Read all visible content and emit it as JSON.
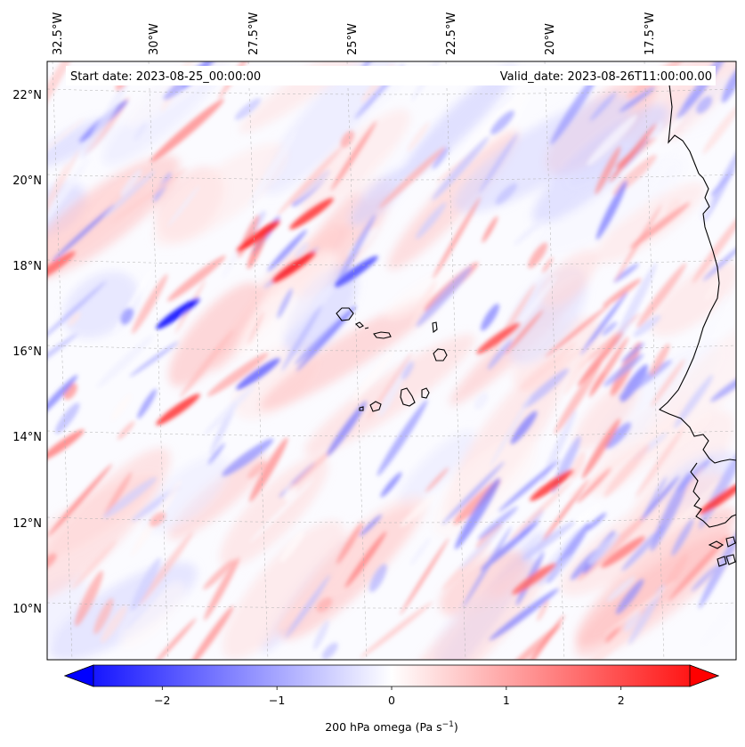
{
  "map": {
    "start_label": "Start date: 2023-08-25_00:00:00",
    "valid_label": "Valid_date: 2023-08-26T11:00:00.00",
    "lon_labels": [
      "32.5°W",
      "30°W",
      "27.5°W",
      "25°W",
      "22.5°W",
      "20°W",
      "17.5°W"
    ],
    "lat_labels": [
      "22°N",
      "20°N",
      "18°N",
      "16°N",
      "14°N",
      "12°N",
      "10°N"
    ],
    "field": "200 hPa omega",
    "colormap": "bwr",
    "value_range": [
      -2.6,
      2.6
    ],
    "coastline_color": "#000000"
  },
  "colorbar": {
    "label_main": "200 hPa omega (Pa s",
    "label_sup": "−1",
    "label_end": ")",
    "ticks": [
      {
        "value": -2,
        "label": "−2"
      },
      {
        "value": -1,
        "label": "−1"
      },
      {
        "value": 0,
        "label": "0"
      },
      {
        "value": 1,
        "label": "1"
      },
      {
        "value": 2,
        "label": "2"
      }
    ],
    "extend": "both"
  }
}
